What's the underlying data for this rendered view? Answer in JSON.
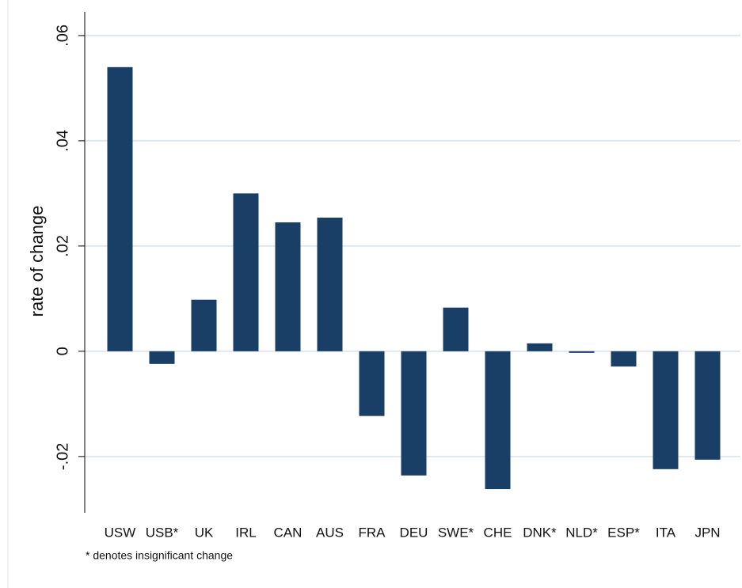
{
  "chart_data": {
    "type": "bar",
    "y_label": "rate of change",
    "footnote": "* denotes insignificant change",
    "categories": [
      "USW",
      "USB*",
      "UK",
      "IRL",
      "CAN",
      "AUS",
      "FRA",
      "DEU",
      "SWE*",
      "CHE",
      "DNK*",
      "NLD*",
      "ESP*",
      "ITA",
      "JPN"
    ],
    "values": [
      0.054,
      -0.0024,
      0.0098,
      0.03,
      0.0245,
      0.0254,
      -0.0123,
      -0.0236,
      0.0083,
      -0.0262,
      0.0015,
      -0.0003,
      -0.0029,
      -0.0224,
      -0.0206
    ],
    "color": "#1a3f66",
    "ylim": [
      -0.0307,
      0.0645
    ],
    "yticks": [
      {
        "value": -0.02,
        "label": "-.02"
      },
      0,
      {
        "value": 0.02,
        "label": ".02"
      },
      {
        "value": 0.04,
        "label": ".04"
      },
      {
        "value": 0.06,
        "label": ".06"
      }
    ],
    "grid": true
  }
}
